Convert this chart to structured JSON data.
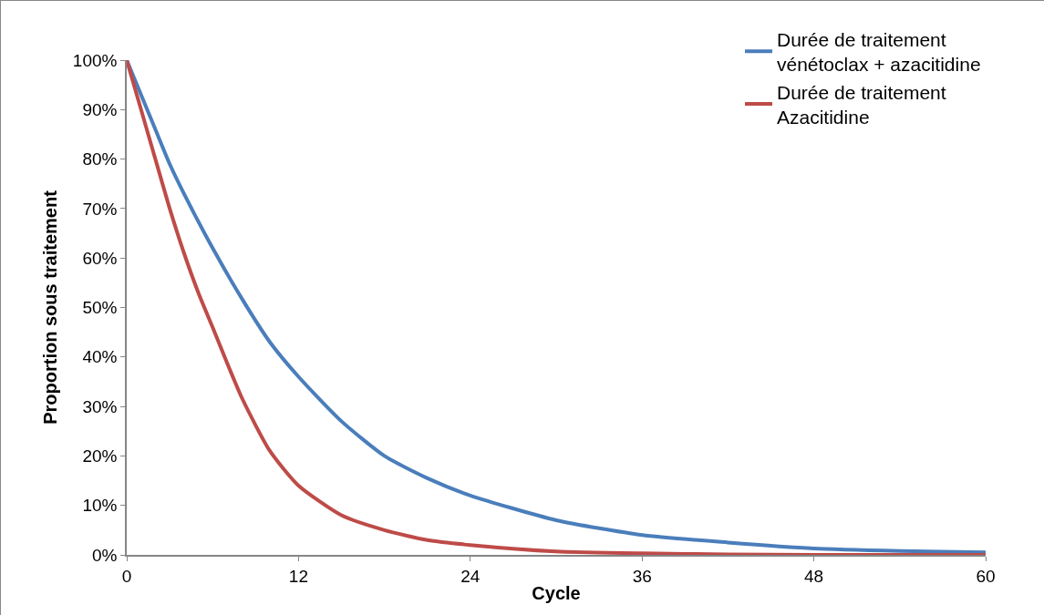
{
  "chart_data": {
    "type": "line",
    "xlabel": "Cycle",
    "ylabel": "Proportion sous traitement",
    "xlim": [
      0,
      60
    ],
    "xticks": [
      0,
      12,
      24,
      36,
      48,
      60
    ],
    "ylim": [
      0,
      100
    ],
    "yticks": [
      {
        "value": 0,
        "label": "0%"
      },
      {
        "value": 10,
        "label": "10%"
      },
      {
        "value": 20,
        "label": "20%"
      },
      {
        "value": 30,
        "label": "30%"
      },
      {
        "value": 40,
        "label": "40%"
      },
      {
        "value": 50,
        "label": "50%"
      },
      {
        "value": 60,
        "label": "60%"
      },
      {
        "value": 70,
        "label": "70%"
      },
      {
        "value": 80,
        "label": "80%"
      },
      {
        "value": 90,
        "label": "90%"
      },
      {
        "value": 100,
        "label": "100%"
      }
    ],
    "grid": false,
    "legend": "top right",
    "marker": "none",
    "line_style": "solid",
    "series": [
      {
        "name": "Durée de traitement\nvénétoclax + azacitidine",
        "color": "#4a7ebb",
        "x": [
          0,
          1,
          2,
          3,
          4,
          6,
          8,
          10,
          12,
          15,
          18,
          21,
          24,
          30,
          36,
          42,
          48,
          54,
          60
        ],
        "values": [
          100,
          93,
          86,
          79,
          73,
          62,
          52,
          43,
          36,
          27,
          20,
          15.5,
          12,
          7,
          4,
          2.5,
          1.3,
          0.8,
          0.5
        ]
      },
      {
        "name": "Durée de traitement\nAzacitidine",
        "color": "#be4b48",
        "x": [
          0,
          1,
          2,
          3,
          4,
          5,
          6,
          8,
          10,
          12,
          15,
          18,
          21,
          24,
          30,
          36,
          42,
          48,
          54,
          60
        ],
        "values": [
          100,
          90,
          80,
          70,
          61,
          53,
          46,
          32,
          21,
          14,
          8,
          5,
          3,
          2,
          0.7,
          0.3,
          0.1,
          0,
          0,
          0
        ]
      }
    ]
  }
}
